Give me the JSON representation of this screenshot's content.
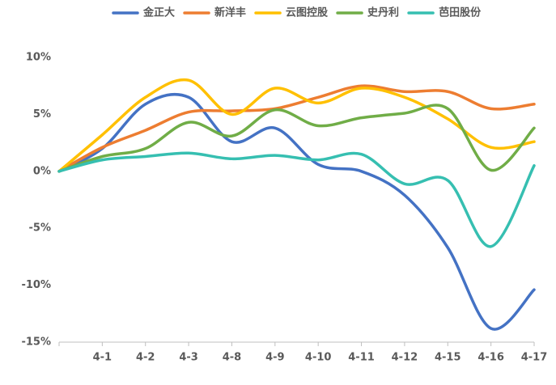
{
  "chart_data": {
    "type": "line",
    "categories": [
      null,
      "4-1",
      "4-2",
      "4-3",
      "4-8",
      "4-9",
      "4-10",
      "4-11",
      "4-12",
      "4-15",
      "4-16",
      "4-17"
    ],
    "series": [
      {
        "name": "金正大",
        "color": "#4472c4",
        "values": [
          0,
          2.0,
          5.9,
          6.5,
          2.6,
          3.8,
          0.6,
          0.0,
          -2.1,
          -6.7,
          -13.8,
          -10.4
        ]
      },
      {
        "name": "新洋丰",
        "color": "#ed7d31",
        "values": [
          0,
          2.1,
          3.6,
          5.2,
          5.3,
          5.5,
          6.5,
          7.5,
          7.0,
          7.0,
          5.5,
          5.9
        ]
      },
      {
        "name": "云图控股",
        "color": "#ffc000",
        "values": [
          0,
          3.2,
          6.5,
          8.0,
          5.0,
          7.3,
          6.0,
          7.3,
          6.5,
          4.6,
          2.1,
          2.6
        ]
      },
      {
        "name": "史丹利",
        "color": "#70ad47",
        "values": [
          0,
          1.3,
          2.0,
          4.3,
          3.1,
          5.4,
          4.0,
          4.7,
          5.1,
          5.5,
          0.1,
          3.8
        ]
      },
      {
        "name": "芭田股份",
        "color": "#36bfb1",
        "values": [
          0,
          1.0,
          1.3,
          1.6,
          1.1,
          1.4,
          1.0,
          1.5,
          -1.1,
          -0.8,
          -6.6,
          0.5
        ]
      }
    ],
    "ylim": [
      -15,
      10
    ],
    "yticks": [
      {
        "value": -15,
        "label": "-15%"
      },
      {
        "value": -10,
        "label": "-10%"
      },
      {
        "value": -5,
        "label": "-5%"
      },
      {
        "value": 0,
        "label": "0%"
      },
      {
        "value": 5,
        "label": "5%"
      },
      {
        "value": 10,
        "label": "10%"
      }
    ],
    "legend": "top"
  }
}
